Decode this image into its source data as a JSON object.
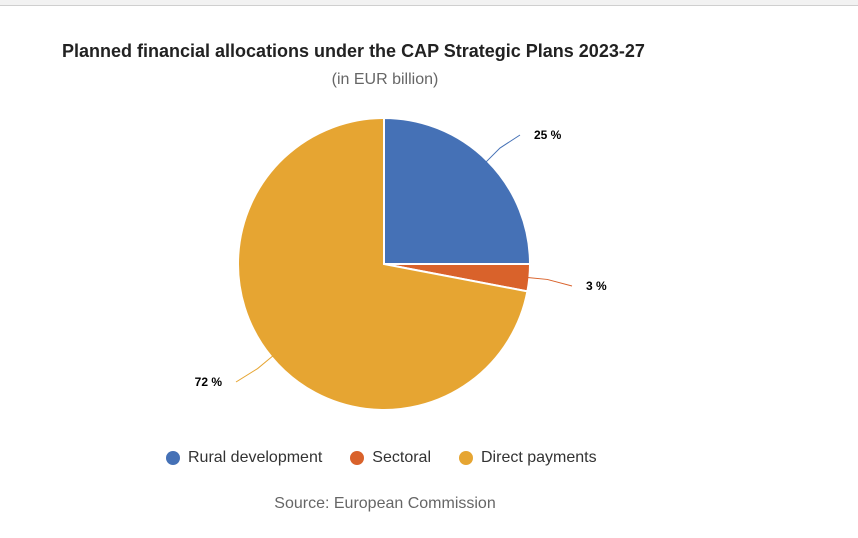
{
  "chart_data": {
    "type": "pie",
    "title": "Planned financial allocations under the CAP Strategic Plans 2023-27",
    "subtitle": "(in EUR billion)",
    "source": "Source: European Commission",
    "legend_position": "bottom",
    "slices": [
      {
        "name": "Rural development",
        "value": 25,
        "label": "25 %",
        "color": "#4571b6"
      },
      {
        "name": "Sectoral",
        "value": 3,
        "label": "3 %",
        "color": "#d9622b"
      },
      {
        "name": "Direct payments",
        "value": 72,
        "label": "72 %",
        "color": "#e6a532"
      }
    ]
  }
}
